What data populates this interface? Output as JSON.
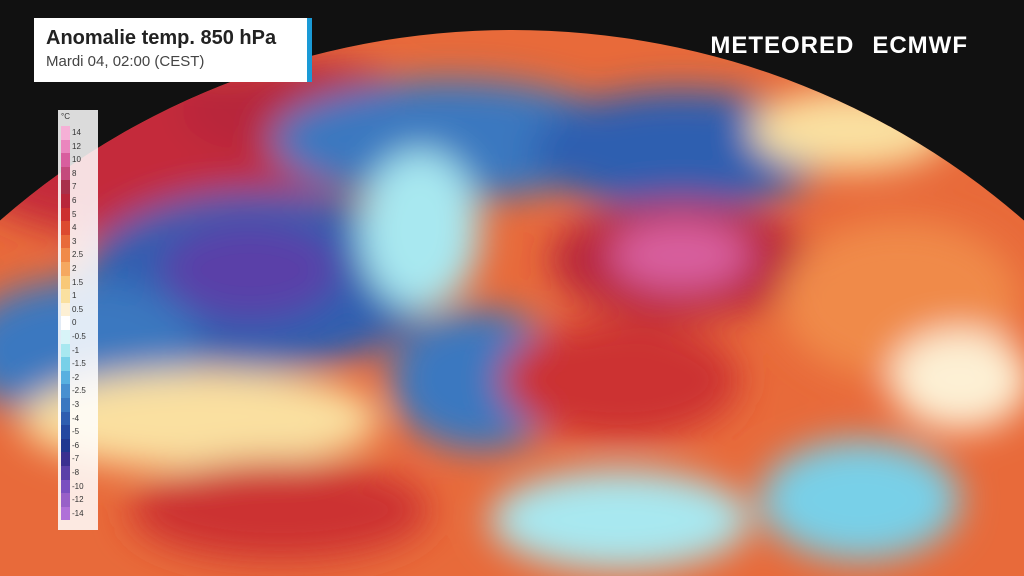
{
  "header": {
    "title": "Anomalie temp. 850 hPa",
    "subtitle": "Mardi 04, 02:00 (CEST)"
  },
  "logos": [
    "METEORED",
    "ECMWF"
  ],
  "legend": {
    "unit": "°C",
    "labels": [
      "14",
      "12",
      "10",
      "8",
      "7",
      "6",
      "5",
      "4",
      "3",
      "2.5",
      "2",
      "1.5",
      "1",
      "0.5",
      "0",
      "-0.5",
      "-1",
      "-1.5",
      "-2",
      "-2.5",
      "-3",
      "-4",
      "-5",
      "-6",
      "-7",
      "-8",
      "-10",
      "-12",
      "-14"
    ],
    "colors": [
      "#f5b0d6",
      "#ea86be",
      "#d85e9e",
      "#c44a7c",
      "#a8304a",
      "#b8263a",
      "#cc3030",
      "#dc4a30",
      "#e86a3a",
      "#f08a4a",
      "#f5a860",
      "#f8c878",
      "#fae0a0",
      "#fdf0d4",
      "#ffffff",
      "#d8f4f8",
      "#a8e8f0",
      "#78d0e8",
      "#58b0e0",
      "#4890d0",
      "#3a78c0",
      "#2e5eb0",
      "#2448a0",
      "#203890",
      "#3a3090",
      "#5a40a8",
      "#7a50c0",
      "#9860c8",
      "#b070d8"
    ]
  }
}
